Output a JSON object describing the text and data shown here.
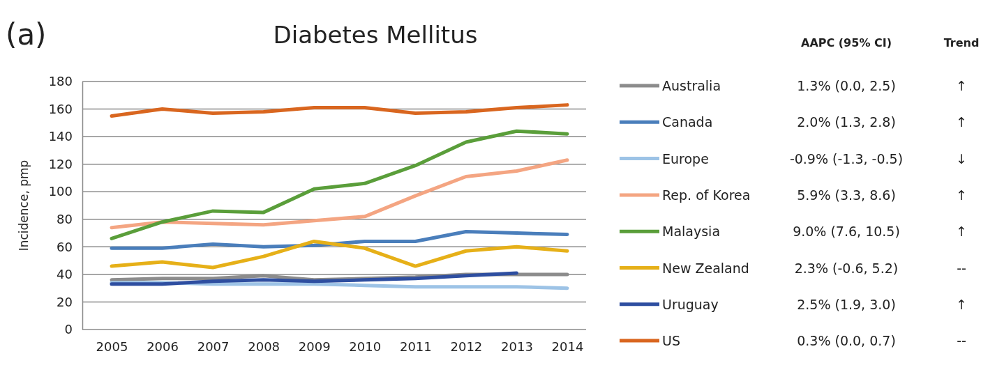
{
  "chart_data": {
    "type": "line",
    "title": "Diabetes Mellitus",
    "ylabel": "Incidence, pmp",
    "categories": [
      "2005",
      "2006",
      "2007",
      "2008",
      "2009",
      "2010",
      "2011",
      "2012",
      "2013",
      "2014"
    ],
    "series": [
      {
        "name": "Australia",
        "color": "#8c8c8c",
        "values": [
          36,
          37,
          37,
          39,
          36,
          37,
          38,
          40,
          40,
          40
        ]
      },
      {
        "name": "Canada",
        "color": "#4a7ebb",
        "values": [
          59,
          59,
          62,
          60,
          61,
          64,
          64,
          71,
          70,
          69
        ]
      },
      {
        "name": "Europe",
        "color": "#9dc3e6",
        "values": [
          34,
          34,
          33,
          33,
          33,
          32,
          31,
          31,
          31,
          30
        ]
      },
      {
        "name": "Rep. of Korea",
        "color": "#f4a582",
        "values": [
          74,
          78,
          77,
          76,
          79,
          82,
          97,
          111,
          115,
          123
        ]
      },
      {
        "name": "Malaysia",
        "color": "#5a9e3a",
        "values": [
          66,
          78,
          86,
          85,
          102,
          106,
          119,
          136,
          144,
          142
        ]
      },
      {
        "name": "New Zealand",
        "color": "#e6b018",
        "values": [
          46,
          49,
          45,
          53,
          64,
          59,
          46,
          57,
          60,
          57
        ]
      },
      {
        "name": "Uruguay",
        "color": "#2e4ea0",
        "values": [
          33,
          33,
          35,
          36,
          35,
          36,
          37,
          39,
          41,
          null
        ]
      },
      {
        "name": "US",
        "color": "#d9661f",
        "values": [
          155,
          160,
          157,
          158,
          161,
          161,
          157,
          158,
          161,
          163
        ]
      }
    ],
    "ylim": [
      0,
      180
    ],
    "yticks": [
      0,
      20,
      40,
      60,
      80,
      100,
      120,
      140,
      160,
      180
    ],
    "grid": "y",
    "legend": "right",
    "marker": "none",
    "line_style": "solid",
    "annotations": [
      "(a)",
      "AAPC (95% CI)",
      "Trend",
      "1.3% (0.0, 2.5)",
      "↑",
      "2.0% (1.3, 2.8)",
      "↑",
      "-0.9% (-1.3, -0.5)",
      "↓",
      "5.9% (3.3, 8.6)",
      "↑",
      "9.0% (7.6, 10.5)",
      "↑",
      "2.3% (-0.6, 5.2)",
      "--",
      "2.5% (1.9, 3.0)",
      "↑",
      "0.3% (0.0, 0.7)",
      "--"
    ]
  }
}
